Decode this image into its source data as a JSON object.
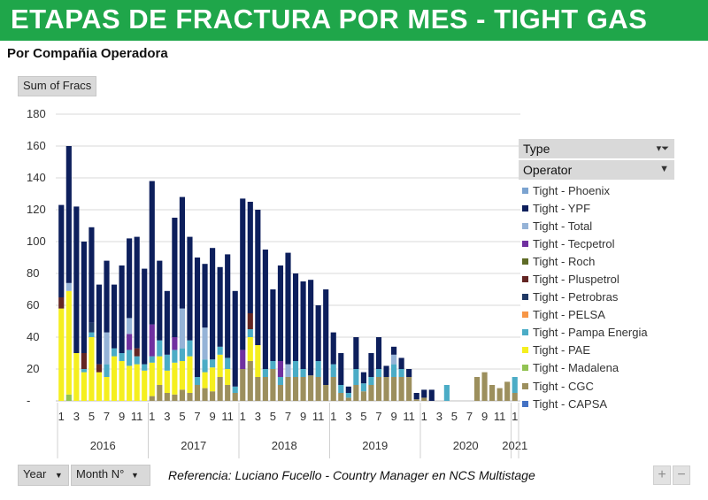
{
  "banner": {
    "title": "ETAPAS DE FRACTURA POR MES - TIGHT GAS"
  },
  "subtitle": "Por Compañia Operadora",
  "value_field_button": "Sum of Fracs",
  "filters": {
    "type_label": "Type",
    "operator_label": "Operator",
    "filter_icon": "funnel-filter-icon",
    "dropdown_icon": "chevron-down-icon"
  },
  "axis_buttons": {
    "year": "Year",
    "month": "Month N°"
  },
  "reference": "Referencia:  Luciano Fucello - Country Manager en NCS Multistage",
  "zoom_buttons": {
    "plus": "+",
    "minus": "−"
  },
  "colors": {
    "banner": "#1fa64a",
    "grid": "#d9d9d9"
  },
  "chart_data": {
    "type": "bar",
    "stacked": true,
    "ylim": [
      0,
      180
    ],
    "yticks": [
      0,
      20,
      40,
      60,
      80,
      100,
      120,
      140,
      160,
      180
    ],
    "ytick_labels": [
      "-",
      "20",
      "40",
      "60",
      "80",
      "100",
      "120",
      "140",
      "160",
      "180"
    ],
    "grid": true,
    "legend_position": "right",
    "years": [
      {
        "label": "2016",
        "months": 12
      },
      {
        "label": "2017",
        "months": 12
      },
      {
        "label": "2018",
        "months": 12
      },
      {
        "label": "2019",
        "months": 12
      },
      {
        "label": "2020",
        "months": 12
      },
      {
        "label": "2021",
        "months": 1
      }
    ],
    "month_labels": [
      "1",
      "3",
      "5",
      "7",
      "9",
      "11"
    ],
    "series": [
      {
        "name": "Tight - CAPSA",
        "color": "#4472c4",
        "values": [
          0,
          0,
          0,
          0,
          0,
          0,
          0,
          0,
          0,
          0,
          0,
          0,
          0,
          0,
          0,
          0,
          0,
          0,
          0,
          0,
          0,
          0,
          0,
          0,
          0,
          0,
          0,
          0,
          0,
          0,
          0,
          0,
          0,
          0,
          0,
          0,
          0,
          0,
          0,
          0,
          0,
          0,
          0,
          0,
          0,
          0,
          0,
          0,
          0,
          0,
          0,
          0,
          0,
          0,
          0,
          0,
          0,
          0,
          0,
          0,
          0
        ]
      },
      {
        "name": "Tight - CGC",
        "color": "#9c8f5d",
        "values": [
          0,
          0,
          0,
          0,
          0,
          0,
          0,
          0,
          0,
          0,
          0,
          0,
          3,
          10,
          5,
          4,
          7,
          5,
          10,
          8,
          6,
          15,
          10,
          5,
          20,
          25,
          15,
          15,
          20,
          10,
          15,
          15,
          15,
          16,
          15,
          10,
          15,
          5,
          2,
          10,
          6,
          10,
          15,
          15,
          15,
          15,
          15,
          1,
          2,
          0,
          0,
          0,
          0,
          0,
          0,
          15,
          18,
          10,
          8,
          12,
          5
        ]
      },
      {
        "name": "Tight - Madalena",
        "color": "#92c353",
        "values": [
          0,
          4,
          0,
          0,
          0,
          0,
          0,
          0,
          0,
          0,
          0,
          0,
          0,
          0,
          0,
          0,
          0,
          0,
          0,
          0,
          0,
          0,
          0,
          0,
          0,
          0,
          0,
          0,
          0,
          0,
          0,
          0,
          0,
          0,
          0,
          0,
          0,
          0,
          0,
          0,
          0,
          0,
          0,
          0,
          0,
          0,
          0,
          0,
          0,
          0,
          0,
          0,
          0,
          0,
          0,
          0,
          0,
          0,
          0,
          0,
          0
        ]
      },
      {
        "name": "Tight - PAE",
        "color": "#f5ef1f",
        "values": [
          58,
          65,
          30,
          18,
          40,
          18,
          15,
          28,
          25,
          22,
          23,
          19,
          21,
          18,
          14,
          20,
          18,
          23,
          0,
          10,
          15,
          14,
          10,
          0,
          0,
          15,
          20,
          0,
          0,
          0,
          0,
          0,
          0,
          0,
          0,
          0,
          0,
          0,
          0,
          0,
          0,
          0,
          0,
          0,
          0,
          0,
          0,
          0,
          0,
          0,
          0,
          0,
          0,
          0,
          0,
          0,
          0,
          0,
          0,
          0,
          0
        ]
      },
      {
        "name": "Tight - Pampa Energia",
        "color": "#4bacc6",
        "values": [
          0,
          0,
          0,
          2,
          3,
          0,
          8,
          5,
          5,
          10,
          5,
          4,
          4,
          10,
          10,
          8,
          8,
          10,
          5,
          8,
          5,
          5,
          7,
          4,
          0,
          5,
          0,
          5,
          5,
          5,
          0,
          10,
          5,
          0,
          10,
          0,
          8,
          5,
          3,
          10,
          5,
          5,
          5,
          0,
          8,
          5,
          0,
          0,
          0,
          0,
          0,
          10,
          0,
          0,
          0,
          0,
          0,
          0,
          0,
          0,
          10
        ]
      },
      {
        "name": "Tight - PELSA",
        "color": "#f79646",
        "values": [
          0,
          0,
          0,
          0,
          0,
          0,
          0,
          0,
          0,
          0,
          0,
          0,
          0,
          0,
          0,
          0,
          0,
          0,
          0,
          0,
          0,
          0,
          0,
          0,
          0,
          0,
          0,
          0,
          0,
          0,
          0,
          0,
          0,
          0,
          0,
          0,
          0,
          0,
          0,
          0,
          0,
          0,
          0,
          0,
          0,
          0,
          0,
          0,
          0,
          0,
          0,
          0,
          0,
          0,
          0,
          0,
          0,
          0,
          0,
          0,
          0
        ]
      },
      {
        "name": "Tight - Petrobras",
        "color": "#1f3864",
        "values": [
          0,
          0,
          0,
          0,
          6,
          0,
          0,
          0,
          0,
          0,
          0,
          0,
          0,
          0,
          0,
          0,
          0,
          0,
          0,
          0,
          0,
          0,
          0,
          0,
          0,
          0,
          0,
          0,
          0,
          0,
          0,
          0,
          0,
          0,
          0,
          0,
          0,
          0,
          0,
          0,
          0,
          0,
          0,
          0,
          0,
          0,
          0,
          0,
          0,
          0,
          0,
          0,
          0,
          0,
          0,
          0,
          0,
          0,
          0,
          0,
          0
        ]
      },
      {
        "name": "Tight - Pluspetrol",
        "color": "#632523",
        "values": [
          7,
          0,
          0,
          10,
          0,
          5,
          0,
          0,
          0,
          0,
          5,
          0,
          0,
          0,
          0,
          0,
          0,
          0,
          0,
          0,
          0,
          0,
          0,
          0,
          0,
          10,
          0,
          0,
          0,
          0,
          0,
          0,
          0,
          0,
          0,
          0,
          0,
          0,
          0,
          0,
          0,
          0,
          0,
          0,
          0,
          0,
          0,
          0,
          0,
          0,
          0,
          0,
          0,
          0,
          0,
          0,
          0,
          0,
          0,
          0,
          0
        ]
      },
      {
        "name": "Tight - Roch",
        "color": "#5e6b26",
        "values": [
          0,
          0,
          0,
          0,
          0,
          0,
          0,
          0,
          0,
          0,
          0,
          0,
          0,
          0,
          0,
          0,
          0,
          0,
          0,
          0,
          0,
          0,
          0,
          0,
          0,
          0,
          0,
          0,
          0,
          0,
          0,
          0,
          0,
          0,
          0,
          0,
          0,
          0,
          0,
          0,
          0,
          0,
          0,
          0,
          0,
          0,
          0,
          0,
          0,
          0,
          0,
          0,
          0,
          0,
          0,
          0,
          0,
          0,
          0,
          0,
          0
        ]
      },
      {
        "name": "Tight - Tecpetrol",
        "color": "#7030a0",
        "values": [
          0,
          0,
          0,
          0,
          0,
          0,
          0,
          0,
          0,
          10,
          0,
          0,
          20,
          0,
          0,
          8,
          0,
          0,
          0,
          0,
          0,
          0,
          0,
          0,
          12,
          0,
          0,
          0,
          0,
          10,
          0,
          0,
          0,
          0,
          0,
          0,
          0,
          0,
          0,
          0,
          0,
          0,
          0,
          0,
          0,
          0,
          0,
          0,
          0,
          0,
          0,
          0,
          0,
          0,
          0,
          0,
          0,
          0,
          0,
          0,
          0
        ]
      },
      {
        "name": "Tight - Total",
        "color": "#95b3d7",
        "values": [
          0,
          5,
          0,
          0,
          0,
          0,
          20,
          0,
          0,
          10,
          0,
          0,
          0,
          0,
          0,
          0,
          25,
          0,
          0,
          20,
          0,
          0,
          0,
          0,
          0,
          0,
          0,
          0,
          0,
          0,
          8,
          0,
          0,
          0,
          0,
          0,
          0,
          0,
          0,
          0,
          0,
          0,
          0,
          0,
          6,
          0,
          0,
          0,
          0,
          0,
          0,
          0,
          0,
          0,
          0,
          0,
          0,
          0,
          0,
          0,
          0
        ]
      },
      {
        "name": "Tight - YPF",
        "color": "#0d1f5c",
        "values": [
          58,
          86,
          92,
          70,
          60,
          50,
          45,
          40,
          55,
          50,
          70,
          60,
          90,
          50,
          40,
          75,
          70,
          65,
          75,
          40,
          70,
          50,
          65,
          60,
          95,
          70,
          85,
          75,
          45,
          60,
          70,
          55,
          55,
          60,
          35,
          60,
          20,
          20,
          4,
          20,
          7,
          15,
          20,
          7,
          5,
          7,
          5,
          4,
          5,
          7,
          0,
          0,
          0,
          0,
          0,
          0,
          0,
          0,
          0,
          0,
          0
        ]
      },
      {
        "name": "Tight - Phoenix",
        "color": "#7ba3d0",
        "values": [
          0,
          0,
          0,
          0,
          0,
          0,
          0,
          0,
          0,
          0,
          0,
          0,
          0,
          0,
          0,
          0,
          0,
          0,
          0,
          0,
          0,
          0,
          0,
          0,
          0,
          0,
          0,
          0,
          0,
          0,
          0,
          0,
          0,
          0,
          0,
          0,
          0,
          0,
          0,
          0,
          0,
          0,
          0,
          0,
          0,
          0,
          0,
          0,
          0,
          0,
          0,
          0,
          0,
          0,
          0,
          0,
          0,
          0,
          0,
          0,
          0
        ]
      }
    ]
  }
}
